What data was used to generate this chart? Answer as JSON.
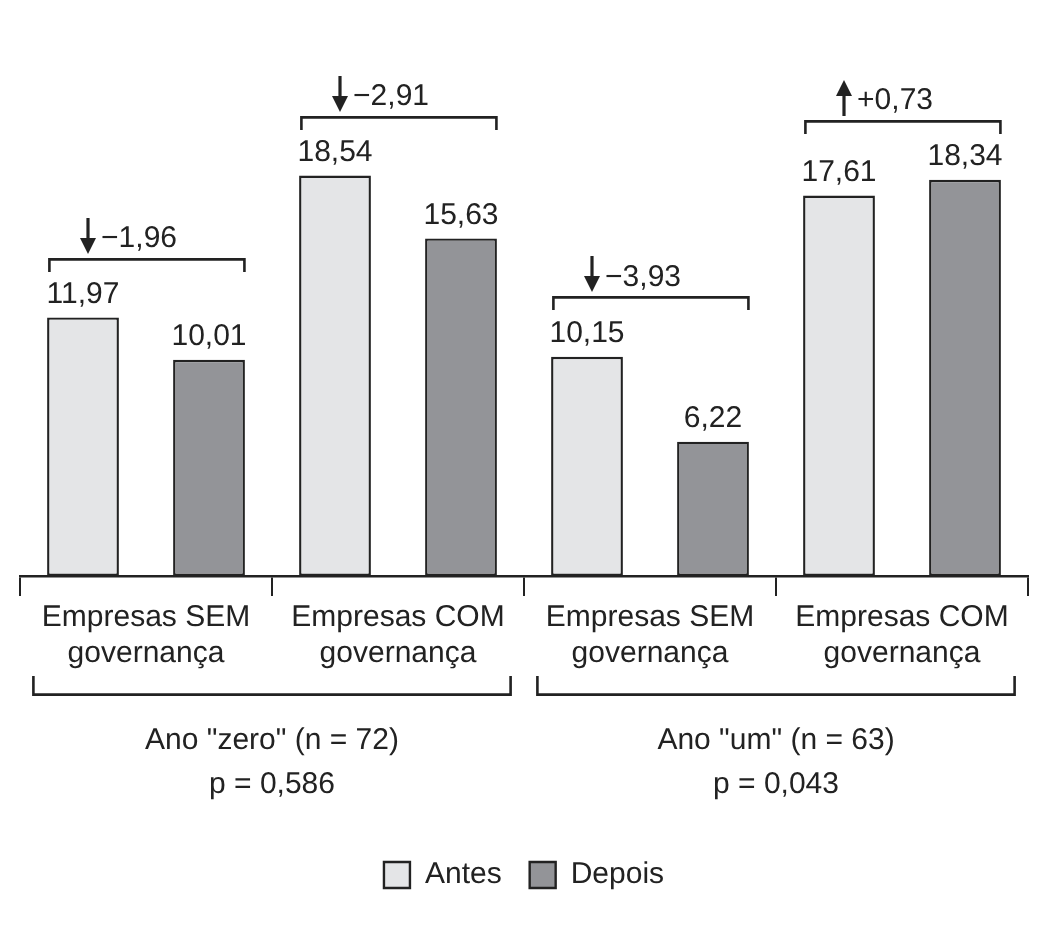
{
  "chart_data": {
    "type": "bar",
    "categories": [
      "Empresas SEM\ngovernança",
      "Empresas COM\ngovernança",
      "Empresas SEM\ngovernança",
      "Empresas COM\ngovernança"
    ],
    "series": [
      {
        "name": "Antes",
        "color": "#e4e5e7",
        "values": [
          11.97,
          18.54,
          10.15,
          17.61
        ],
        "value_labels": [
          "11,97",
          "18,54",
          "10,15",
          "17,61"
        ]
      },
      {
        "name": "Depois",
        "color": "#939498",
        "values": [
          10.01,
          15.63,
          6.22,
          18.34
        ],
        "value_labels": [
          "10,01",
          "15,63",
          "6,22",
          "18,34"
        ]
      }
    ],
    "annotations": [
      "−1,96",
      "−2,91",
      "−3,93",
      "+0,73",
      "Ano \"zero\" (n = 72)",
      "p = 0,586",
      "Ano \"um\" (n = 63)",
      "p = 0,043"
    ],
    "legend": "bottom",
    "grid": false
  }
}
